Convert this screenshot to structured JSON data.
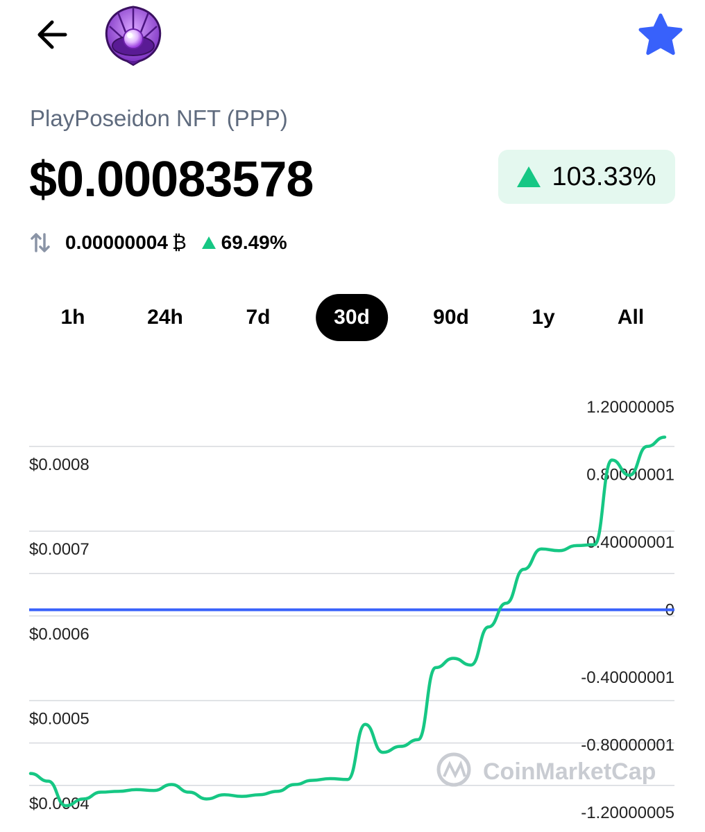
{
  "header": {
    "back_icon": "arrow-left-icon",
    "logo_icon": "purple-seashell-pearl-logo",
    "favorite_icon": "star-icon",
    "favorite_color": "#3861fb"
  },
  "coin": {
    "name": "PlayPoseidon NFT (PPP)",
    "price": "$0.00083578",
    "change_24h": "103.33%",
    "change_color": "#16c784",
    "btc_price": "0.00000004",
    "btc_symbol": "₿",
    "btc_change": "69.49%"
  },
  "range_tabs": [
    {
      "label": "1h",
      "active": false
    },
    {
      "label": "24h",
      "active": false
    },
    {
      "label": "7d",
      "active": false
    },
    {
      "label": "30d",
      "active": true
    },
    {
      "label": "90d",
      "active": false
    },
    {
      "label": "1y",
      "active": false
    },
    {
      "label": "All",
      "active": false
    }
  ],
  "watermark": "CoinMarketCap",
  "chart_data": {
    "type": "line",
    "title": "",
    "line_color": "#16c784",
    "zero_line_color": "#3861fb",
    "grid": true,
    "left_axis": {
      "ticks": [
        {
          "label": "$0.0008",
          "value": 0.0008
        },
        {
          "label": "$0.0007",
          "value": 0.0007
        },
        {
          "label": "$0.0006",
          "value": 0.0006
        },
        {
          "label": "$0.0005",
          "value": 0.0005
        },
        {
          "label": "$0.0004",
          "value": 0.0004
        }
      ],
      "range": [
        0.000345,
        0.000885
      ]
    },
    "right_axis": {
      "ticks": [
        "1.20000005",
        "0.80000001",
        "0.40000001",
        "0",
        "-0.40000001",
        "-0.80000001",
        "-1.20000005"
      ]
    },
    "reference_line": {
      "axis": "right",
      "value": 0
    },
    "series": [
      {
        "values": [
          0.000414,
          0.000405,
          0.000376,
          0.000384,
          0.000392,
          0.000393,
          0.000395,
          0.000394,
          0.000401,
          0.000392,
          0.000384,
          0.000389,
          0.000387,
          0.000389,
          0.000393,
          0.000401,
          0.000406,
          0.000408,
          0.000407,
          0.000472,
          0.000439,
          0.000446,
          0.000454,
          0.000539,
          0.00055,
          0.000542,
          0.000587,
          0.000615,
          0.000655,
          0.000679,
          0.000677,
          0.000683,
          0.000684,
          0.000784,
          0.000766,
          0.0008,
          0.000811
        ]
      }
    ]
  }
}
